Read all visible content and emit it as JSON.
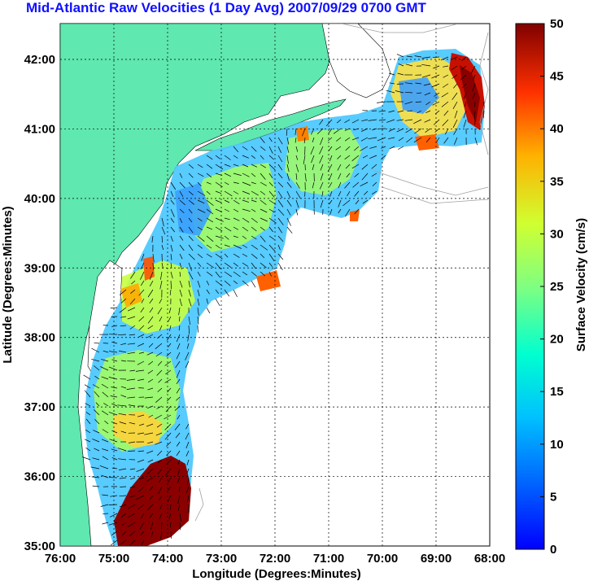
{
  "title": "Mid-Atlantic Raw Velocities (1 Day Avg) 2007/09/29 0700 GMT",
  "map": {
    "xlabel": "Longitude (Degrees:Minutes)",
    "ylabel": "Latitude (Degrees:Minutes)",
    "x_ticks": [
      "76:00",
      "75:00",
      "74:00",
      "73:00",
      "72:00",
      "71:00",
      "70:00",
      "69:00",
      "68:00"
    ],
    "y_ticks": [
      "42:00",
      "41:00",
      "40:00",
      "39:00",
      "38:00",
      "37:00",
      "36:00",
      "35:00"
    ],
    "lon_range": [
      -76,
      -68
    ],
    "lat_range": [
      35,
      42.5
    ],
    "grid": "dotted",
    "land_color": "#5fe8b0",
    "sea_color": "#ffffff"
  },
  "colorbar": {
    "label": "Surface Velocity (cm/s)",
    "ticks": [
      "50",
      "45",
      "40",
      "35",
      "30",
      "25",
      "20",
      "15",
      "10",
      "5",
      "0"
    ],
    "range": [
      0,
      50
    ],
    "colormap": "jet"
  }
}
